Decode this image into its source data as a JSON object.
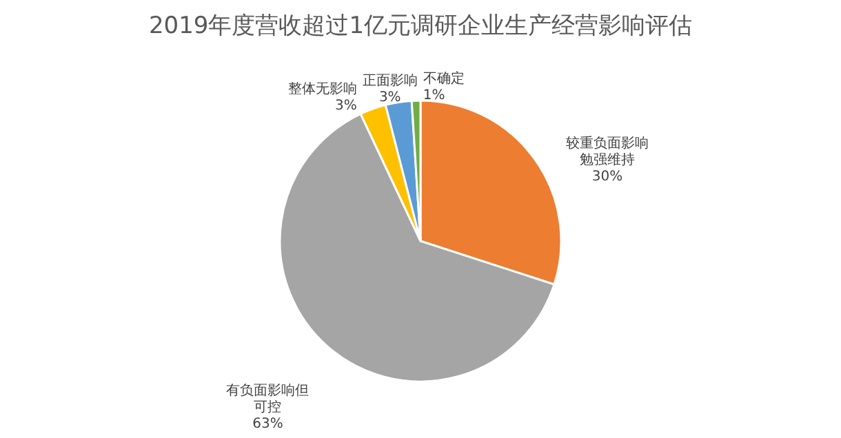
{
  "chart_data": {
    "type": "pie",
    "title": "2019年度营收超过1亿元调研企业生产经营影响评估",
    "categories": [
      "较重负面影响勉强维持",
      "有负面影响但可控",
      "整体无影响",
      "正面影响",
      "不确定"
    ],
    "value_labels": [
      "30%",
      "63%",
      "3%",
      "3%",
      "1%"
    ],
    "values": [
      30,
      63,
      3,
      3,
      1
    ],
    "colors": [
      "#ed7d31",
      "#a5a5a5",
      "#ffc000",
      "#5b9bd5",
      "#70ad47"
    ],
    "data_labels": true,
    "legend": false
  }
}
